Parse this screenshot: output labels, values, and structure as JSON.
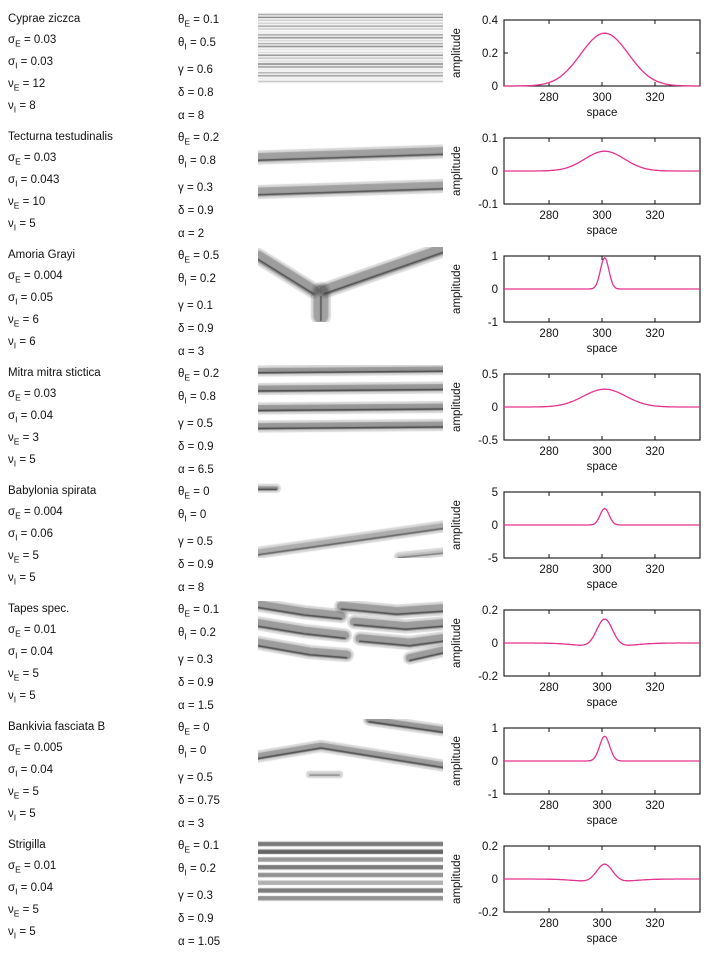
{
  "ui": {
    "background": "#ffffff",
    "text_color": "#111111",
    "curve_color": "#e5318f"
  },
  "axis_shared": {
    "xlabel": "space",
    "ylabel": "amplitude",
    "xticks": [
      280,
      300,
      320
    ]
  },
  "rows": [
    {
      "species": "Cyprae ziczca",
      "left_params": [
        {
          "sym": "σ",
          "sub": "E",
          "val": "0.03"
        },
        {
          "sym": "σ",
          "sub": "I",
          "val": "0.03"
        },
        {
          "sym": "ν",
          "sub": "E",
          "val": "12"
        },
        {
          "sym": "ν",
          "sub": "I",
          "val": "8"
        }
      ],
      "right_params": [
        {
          "sym": "θ",
          "sub": "E",
          "val": "0.1"
        },
        {
          "sym": "θ",
          "sub": "I",
          "val": "0.5"
        },
        {
          "sym": "γ",
          "sub": "",
          "val": "0.6"
        },
        {
          "sym": "δ",
          "sub": "",
          "val": "0.8"
        },
        {
          "sym": "α",
          "sub": "",
          "val": "8"
        }
      ],
      "pattern": {
        "type": "stripes",
        "desc": "dense fine horizontal striping across full panel",
        "y0": 2,
        "h": 70,
        "count": 24,
        "lw": 1.4,
        "base": 0.38,
        "amp": 0.25,
        "freq": 1.9
      }
    },
    {
      "species": "Tecturna testudinalis",
      "left_params": [
        {
          "sym": "σ",
          "sub": "E",
          "val": "0.03"
        },
        {
          "sym": "σ",
          "sub": "I",
          "val": "0.043"
        },
        {
          "sym": "ν",
          "sub": "E",
          "val": "10"
        },
        {
          "sym": "ν",
          "sub": "I",
          "val": "5"
        }
      ],
      "right_params": [
        {
          "sym": "θ",
          "sub": "E",
          "val": "0.2"
        },
        {
          "sym": "θ",
          "sub": "I",
          "val": "0.8"
        },
        {
          "sym": "γ",
          "sub": "",
          "val": "0.3"
        },
        {
          "sym": "δ",
          "sub": "",
          "val": "0.9"
        },
        {
          "sym": "α",
          "sub": "",
          "val": "2"
        }
      ],
      "pattern": {
        "type": "bands",
        "desc": "two slightly slanted horizontal bands",
        "bands": [
          {
            "pts": [
              [
                0,
                0.38
              ],
              [
                1,
                0.3
              ]
            ],
            "w": 9,
            "g": 0.4
          },
          {
            "pts": [
              [
                0,
                0.84
              ],
              [
                1,
                0.76
              ]
            ],
            "w": 9,
            "g": 0.4
          }
        ]
      }
    },
    {
      "species": "Amoria Grayi",
      "left_params": [
        {
          "sym": "σ",
          "sub": "E",
          "val": "0.004"
        },
        {
          "sym": "σ",
          "sub": "I",
          "val": "0.05"
        },
        {
          "sym": "ν",
          "sub": "E",
          "val": "6"
        },
        {
          "sym": "ν",
          "sub": "I",
          "val": "6"
        }
      ],
      "right_params": [
        {
          "sym": "θ",
          "sub": "E",
          "val": "0.5"
        },
        {
          "sym": "θ",
          "sub": "I",
          "val": "0.2"
        },
        {
          "sym": "γ",
          "sub": "",
          "val": "0.1"
        },
        {
          "sym": "δ",
          "sub": "",
          "val": "0.9"
        },
        {
          "sym": "α",
          "sub": "",
          "val": "3"
        }
      ],
      "pattern": {
        "type": "bands",
        "desc": "Y-shaped branching band in upper half",
        "bands": [
          {
            "pts": [
              [
                0,
                0.12
              ],
              [
                0.3,
                0.58
              ]
            ],
            "w": 11,
            "g": 0.42
          },
          {
            "pts": [
              [
                1,
                0.03
              ],
              [
                0.36,
                0.58
              ]
            ],
            "w": 11,
            "g": 0.42
          },
          {
            "pts": [
              [
                0.34,
                0.6
              ],
              [
                0.34,
                0.92
              ]
            ],
            "w": 15,
            "g": 0.38
          }
        ]
      }
    },
    {
      "species": "Mitra mitra stictica",
      "left_params": [
        {
          "sym": "σ",
          "sub": "E",
          "val": "0.03"
        },
        {
          "sym": "σ",
          "sub": "I",
          "val": "0.04"
        },
        {
          "sym": "ν",
          "sub": "E",
          "val": "3"
        },
        {
          "sym": "ν",
          "sub": "I",
          "val": "5"
        }
      ],
      "right_params": [
        {
          "sym": "θ",
          "sub": "E",
          "val": "0.2"
        },
        {
          "sym": "θ",
          "sub": "I",
          "val": "0.8"
        },
        {
          "sym": "γ",
          "sub": "",
          "val": "0.5"
        },
        {
          "sym": "δ",
          "sub": "",
          "val": "0.9"
        },
        {
          "sym": "α",
          "sub": "",
          "val": "6.5"
        }
      ],
      "pattern": {
        "type": "bands",
        "desc": "four evenly spaced horizontal bands",
        "bands": [
          {
            "pts": [
              [
                0,
                0.08
              ],
              [
                1,
                0.06
              ]
            ],
            "w": 6,
            "g": 0.45
          },
          {
            "pts": [
              [
                0,
                0.32
              ],
              [
                1,
                0.3
              ]
            ],
            "w": 7,
            "g": 0.45
          },
          {
            "pts": [
              [
                0,
                0.58
              ],
              [
                1,
                0.56
              ]
            ],
            "w": 7,
            "g": 0.45
          },
          {
            "pts": [
              [
                0,
                0.82
              ],
              [
                1,
                0.8
              ]
            ],
            "w": 7,
            "g": 0.45
          }
        ]
      }
    },
    {
      "species": "Babylonia spirata",
      "left_params": [
        {
          "sym": "σ",
          "sub": "E",
          "val": "0.004"
        },
        {
          "sym": "σ",
          "sub": "I",
          "val": "0.06"
        },
        {
          "sym": "ν",
          "sub": "E",
          "val": "5"
        },
        {
          "sym": "ν",
          "sub": "I",
          "val": "5"
        }
      ],
      "right_params": [
        {
          "sym": "θ",
          "sub": "E",
          "val": "0"
        },
        {
          "sym": "θ",
          "sub": "I",
          "val": "0"
        },
        {
          "sym": "γ",
          "sub": "",
          "val": "0.5"
        },
        {
          "sym": "δ",
          "sub": "",
          "val": "0.9"
        },
        {
          "sym": "α",
          "sub": "",
          "val": "8"
        }
      ],
      "pattern": {
        "type": "bands",
        "desc": "rising diagonal band with small mark top-left",
        "bands": [
          {
            "pts": [
              [
                0,
                0.07
              ],
              [
                0.1,
                0.07
              ]
            ],
            "w": 4,
            "g": 0.5
          },
          {
            "pts": [
              [
                0,
                0.93
              ],
              [
                1,
                0.58
              ]
            ],
            "w": 7,
            "g": 0.3
          },
          {
            "pts": [
              [
                0.76,
                0.98
              ],
              [
                1,
                0.92
              ]
            ],
            "w": 4,
            "g": 0.18
          }
        ]
      }
    },
    {
      "species": "Tapes spec.",
      "left_params": [
        {
          "sym": "σ",
          "sub": "E",
          "val": "0.01"
        },
        {
          "sym": "σ",
          "sub": "I",
          "val": "0.04"
        },
        {
          "sym": "ν",
          "sub": "E",
          "val": "5"
        },
        {
          "sym": "ν",
          "sub": "I",
          "val": "5"
        }
      ],
      "right_params": [
        {
          "sym": "θ",
          "sub": "E",
          "val": "0.1"
        },
        {
          "sym": "θ",
          "sub": "I",
          "val": "0.2"
        },
        {
          "sym": "γ",
          "sub": "",
          "val": "0.3"
        },
        {
          "sym": "δ",
          "sub": "",
          "val": "0.9"
        },
        {
          "sym": "α",
          "sub": "",
          "val": "1.5"
        }
      ],
      "pattern": {
        "type": "bands",
        "desc": "wavy bands with central dislocation",
        "bands": [
          {
            "pts": [
              [
                0,
                0.05
              ],
              [
                0.25,
                0.15
              ],
              [
                0.45,
                0.2
              ]
            ],
            "w": 9,
            "g": 0.42
          },
          {
            "pts": [
              [
                0,
                0.3
              ],
              [
                0.25,
                0.4
              ],
              [
                0.47,
                0.46
              ]
            ],
            "w": 9,
            "g": 0.42
          },
          {
            "pts": [
              [
                0,
                0.56
              ],
              [
                0.28,
                0.68
              ],
              [
                0.48,
                0.72
              ]
            ],
            "w": 9,
            "g": 0.42
          },
          {
            "pts": [
              [
                0.45,
                0.07
              ],
              [
                0.75,
                0.14
              ],
              [
                1,
                0.1
              ]
            ],
            "w": 9,
            "g": 0.42
          },
          {
            "pts": [
              [
                0.52,
                0.28
              ],
              [
                0.8,
                0.34
              ],
              [
                1,
                0.3
              ]
            ],
            "w": 9,
            "g": 0.42
          },
          {
            "pts": [
              [
                0.55,
                0.5
              ],
              [
                0.82,
                0.56
              ],
              [
                1,
                0.5
              ]
            ],
            "w": 9,
            "g": 0.42
          },
          {
            "pts": [
              [
                0.82,
                0.76
              ],
              [
                1,
                0.66
              ]
            ],
            "w": 8,
            "g": 0.42
          }
        ]
      }
    },
    {
      "species": "Bankivia fasciata B",
      "left_params": [
        {
          "sym": "σ",
          "sub": "E",
          "val": "0.005"
        },
        {
          "sym": "σ",
          "sub": "I",
          "val": "0.04"
        },
        {
          "sym": "ν",
          "sub": "E",
          "val": "5"
        },
        {
          "sym": "ν",
          "sub": "I",
          "val": "5"
        }
      ],
      "right_params": [
        {
          "sym": "θ",
          "sub": "E",
          "val": "0"
        },
        {
          "sym": "θ",
          "sub": "I",
          "val": "0"
        },
        {
          "sym": "γ",
          "sub": "",
          "val": "0.5"
        },
        {
          "sym": "δ",
          "sub": "",
          "val": "0.75"
        },
        {
          "sym": "α",
          "sub": "",
          "val": "3"
        }
      ],
      "pattern": {
        "type": "bands",
        "desc": "chevron band with diagonal band top-right",
        "bands": [
          {
            "pts": [
              [
                0,
                0.5
              ],
              [
                0.34,
                0.36
              ],
              [
                1,
                0.62
              ]
            ],
            "w": 7,
            "g": 0.42
          },
          {
            "pts": [
              [
                0.6,
                0.01
              ],
              [
                1,
                0.15
              ]
            ],
            "w": 7,
            "g": 0.45
          },
          {
            "pts": [
              [
                0.28,
                0.74
              ],
              [
                0.44,
                0.74
              ]
            ],
            "w": 2.5,
            "g": 0.12
          }
        ]
      }
    },
    {
      "species": "Strigilla",
      "left_params": [
        {
          "sym": "σ",
          "sub": "E",
          "val": "0.01"
        },
        {
          "sym": "σ",
          "sub": "I",
          "val": "0.04"
        },
        {
          "sym": "ν",
          "sub": "E",
          "val": "5"
        },
        {
          "sym": "ν",
          "sub": "I",
          "val": "5"
        }
      ],
      "right_params": [
        {
          "sym": "θ",
          "sub": "E",
          "val": "0.1"
        },
        {
          "sym": "θ",
          "sub": "I",
          "val": "0.2"
        },
        {
          "sym": "γ",
          "sub": "",
          "val": "0.3"
        },
        {
          "sym": "δ",
          "sub": "",
          "val": "0.9"
        },
        {
          "sym": "α",
          "sub": "",
          "val": "1.05"
        }
      ],
      "pattern": {
        "type": "stripes",
        "desc": "dense dark horizontal stripes filling panel",
        "y0": 3,
        "h": 62,
        "count": 8,
        "lw": 4.5,
        "base": 0.55,
        "amp": 0.12,
        "freq": 2.3
      }
    }
  ],
  "chart_data": [
    {
      "type": "line",
      "species": "Cyprae ziczca",
      "xlabel": "space",
      "ylabel": "amplitude",
      "xlim": [
        263,
        337
      ],
      "xticks": [
        280,
        300,
        320
      ],
      "ylim": [
        0,
        0.4
      ],
      "yticks": [
        0,
        0.2,
        0.4
      ],
      "grid": false,
      "curve": {
        "shape": "gaussian-bump",
        "center": 301,
        "peak": 0.32,
        "sigma": 9,
        "baseline": 0,
        "side_dip": 0,
        "dip_sigma": 9
      }
    },
    {
      "type": "line",
      "species": "Tecturna testudinalis",
      "xlabel": "space",
      "ylabel": "amplitude",
      "xlim": [
        263,
        337
      ],
      "xticks": [
        280,
        300,
        320
      ],
      "ylim": [
        -0.1,
        0.1
      ],
      "yticks": [
        -0.1,
        0,
        0.1
      ],
      "grid": false,
      "curve": {
        "shape": "gaussian-bump",
        "center": 301,
        "peak": 0.06,
        "sigma": 7.5,
        "baseline": 0,
        "side_dip": 0,
        "dip_sigma": 9
      }
    },
    {
      "type": "line",
      "species": "Amoria Grayi",
      "xlabel": "space",
      "ylabel": "amplitude",
      "xlim": [
        263,
        337
      ],
      "xticks": [
        280,
        300,
        320
      ],
      "ylim": [
        -1,
        1
      ],
      "yticks": [
        -1,
        0,
        1
      ],
      "grid": false,
      "curve": {
        "shape": "narrow-spike",
        "center": 301,
        "peak": 0.95,
        "sigma": 1.6,
        "baseline": 0,
        "side_dip": 0,
        "dip_sigma": 9
      }
    },
    {
      "type": "line",
      "species": "Mitra mitra stictica",
      "xlabel": "space",
      "ylabel": "amplitude",
      "xlim": [
        263,
        337
      ],
      "xticks": [
        280,
        300,
        320
      ],
      "ylim": [
        -0.5,
        0.5
      ],
      "yticks": [
        -0.5,
        0,
        0.5
      ],
      "grid": false,
      "curve": {
        "shape": "gaussian-bump",
        "center": 301,
        "peak": 0.27,
        "sigma": 8,
        "baseline": 0,
        "side_dip": 0,
        "dip_sigma": 9
      }
    },
    {
      "type": "line",
      "species": "Babylonia spirata",
      "xlabel": "space",
      "ylabel": "amplitude",
      "xlim": [
        263,
        337
      ],
      "xticks": [
        280,
        300,
        320
      ],
      "ylim": [
        -5,
        5
      ],
      "yticks": [
        -5,
        0,
        5
      ],
      "grid": false,
      "curve": {
        "shape": "narrow-spike",
        "center": 301,
        "peak": 2.5,
        "sigma": 1.7,
        "baseline": 0,
        "side_dip": 0,
        "dip_sigma": 9
      }
    },
    {
      "type": "line",
      "species": "Tapes spec.",
      "xlabel": "space",
      "ylabel": "amplitude",
      "xlim": [
        263,
        337
      ],
      "xticks": [
        280,
        300,
        320
      ],
      "ylim": [
        -0.2,
        0.2
      ],
      "yticks": [
        -0.2,
        0,
        0.2
      ],
      "grid": false,
      "curve": {
        "shape": "bump-with-side-dips",
        "center": 301,
        "peak": 0.17,
        "sigma": 3,
        "baseline": 0,
        "side_dip": 0.025,
        "dip_sigma": 9
      }
    },
    {
      "type": "line",
      "species": "Bankivia fasciata B",
      "xlabel": "space",
      "ylabel": "amplitude",
      "xlim": [
        263,
        337
      ],
      "xticks": [
        280,
        300,
        320
      ],
      "ylim": [
        -1,
        1
      ],
      "yticks": [
        -1,
        0,
        1
      ],
      "grid": false,
      "curve": {
        "shape": "narrow-spike",
        "center": 301,
        "peak": 0.75,
        "sigma": 1.9,
        "baseline": 0,
        "side_dip": 0,
        "dip_sigma": 9
      }
    },
    {
      "type": "line",
      "species": "Strigilla",
      "xlabel": "space",
      "ylabel": "amplitude",
      "xlim": [
        263,
        337
      ],
      "xticks": [
        280,
        300,
        320
      ],
      "ylim": [
        -0.2,
        0.2
      ],
      "yticks": [
        -0.2,
        0,
        0.2
      ],
      "grid": false,
      "curve": {
        "shape": "bump-with-side-dips",
        "center": 301,
        "peak": 0.11,
        "sigma": 3,
        "baseline": 0,
        "side_dip": 0.02,
        "dip_sigma": 9
      }
    }
  ]
}
